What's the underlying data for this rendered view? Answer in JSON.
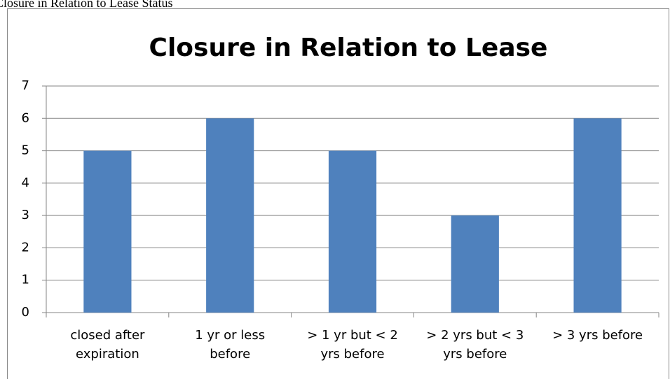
{
  "caption": "Closure in Relation to Lease Status",
  "chart_data": {
    "type": "bar",
    "title": "Closure in Relation to Lease",
    "categories": [
      "closed after expiration",
      "1 yr or less before",
      "> 1 yr but < 2 yrs before",
      "> 2 yrs but < 3 yrs before",
      "> 3 yrs before"
    ],
    "values": [
      5,
      6,
      5,
      3,
      6
    ],
    "color": "#4f81bd",
    "ylim": [
      0,
      7
    ],
    "yticks": [
      0,
      1,
      2,
      3,
      4,
      5,
      6,
      7
    ],
    "grid": true
  }
}
